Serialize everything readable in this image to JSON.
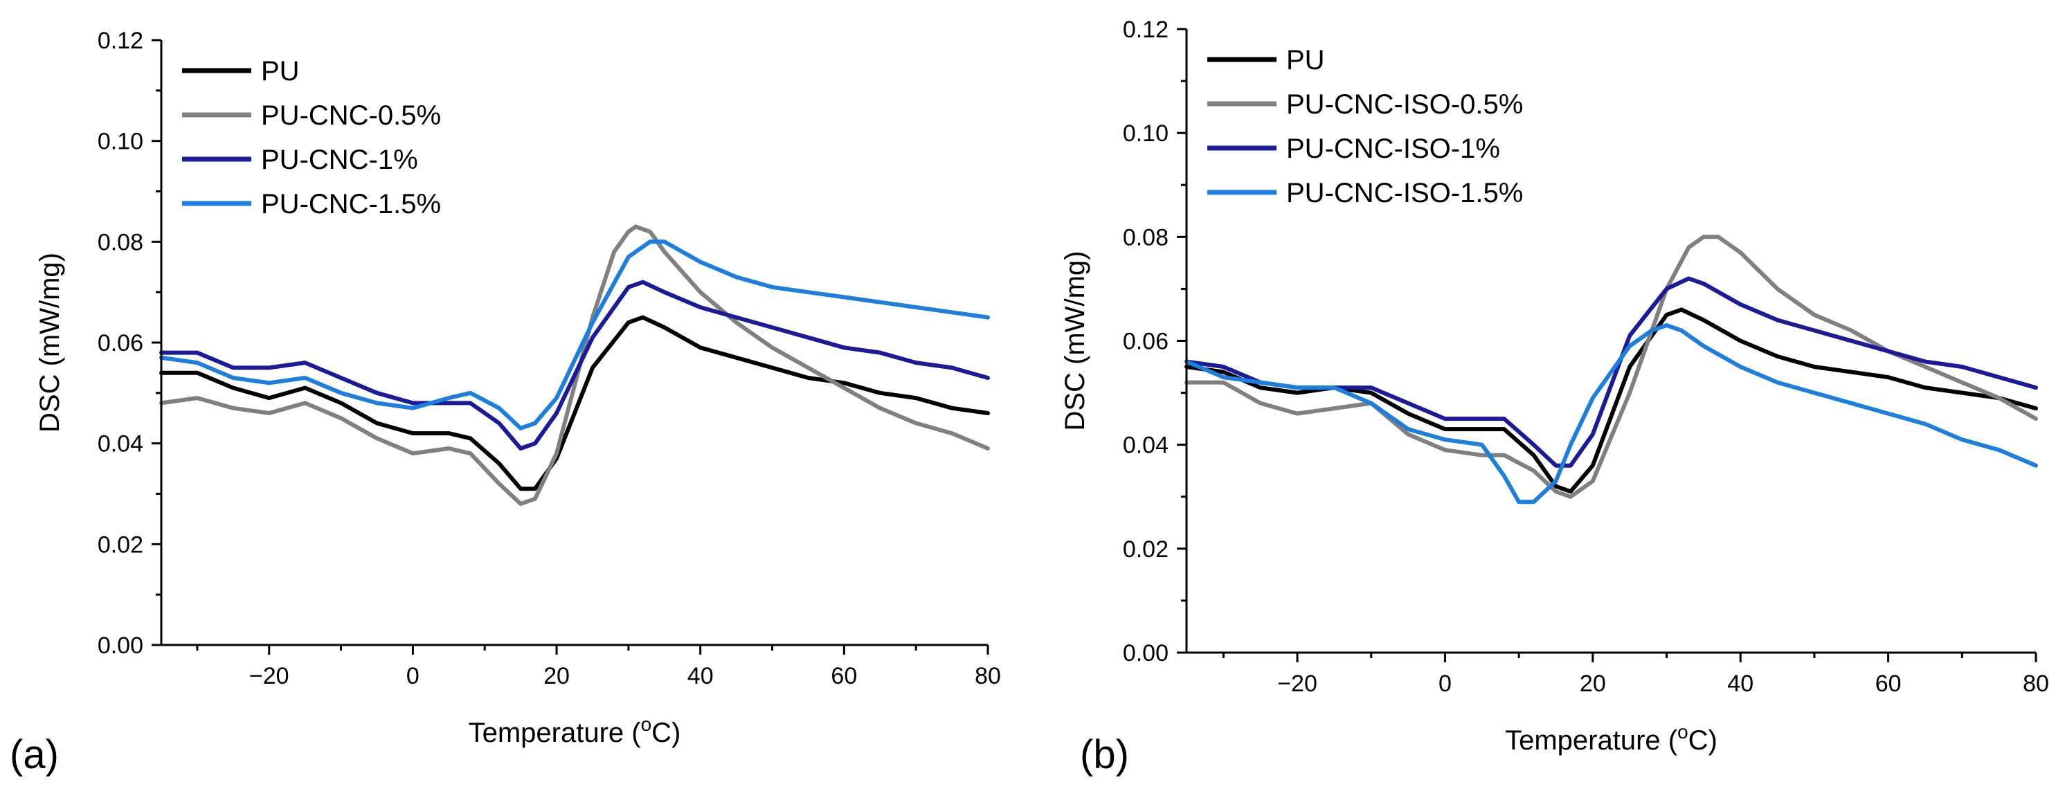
{
  "chart_data": [
    {
      "type": "line",
      "panel_label": "(a)",
      "xlabel": "Temperature",
      "xlabel_unit_sup": "o",
      "xlabel_unit": "C",
      "ylabel": "DSC (mW/mg)",
      "xlim": [
        -35,
        80
      ],
      "ylim": [
        0.0,
        0.12
      ],
      "x_ticks": [
        -20,
        0,
        20,
        40,
        60,
        80
      ],
      "x_tick_labels": [
        "−20",
        "0",
        "20",
        "40",
        "60",
        "80"
      ],
      "y_ticks": [
        0.0,
        0.02,
        0.04,
        0.06,
        0.08,
        0.1,
        0.12
      ],
      "y_tick_labels": [
        "0.00",
        "0.02",
        "0.04",
        "0.06",
        "0.08",
        "0.10",
        "0.12"
      ],
      "grid": false,
      "legend_position": "top-left",
      "series": [
        {
          "name": "PU",
          "color": "#000000",
          "x": [
            -35,
            -30,
            -25,
            -20,
            -15,
            -10,
            -5,
            0,
            5,
            8,
            12,
            15,
            17,
            20,
            25,
            30,
            32,
            35,
            40,
            45,
            50,
            55,
            60,
            65,
            70,
            75,
            80
          ],
          "y": [
            0.054,
            0.054,
            0.051,
            0.049,
            0.051,
            0.048,
            0.044,
            0.042,
            0.042,
            0.041,
            0.036,
            0.031,
            0.031,
            0.037,
            0.055,
            0.064,
            0.065,
            0.063,
            0.059,
            0.057,
            0.055,
            0.053,
            0.052,
            0.05,
            0.049,
            0.047,
            0.046
          ]
        },
        {
          "name": "PU-CNC-0.5%",
          "color": "#808080",
          "x": [
            -35,
            -30,
            -25,
            -20,
            -15,
            -10,
            -5,
            0,
            5,
            8,
            12,
            15,
            17,
            20,
            25,
            28,
            30,
            31,
            33,
            35,
            40,
            45,
            50,
            55,
            60,
            65,
            70,
            75,
            80
          ],
          "y": [
            0.048,
            0.049,
            0.047,
            0.046,
            0.048,
            0.045,
            0.041,
            0.038,
            0.039,
            0.038,
            0.032,
            0.028,
            0.029,
            0.038,
            0.065,
            0.078,
            0.082,
            0.083,
            0.082,
            0.078,
            0.07,
            0.064,
            0.059,
            0.055,
            0.051,
            0.047,
            0.044,
            0.042,
            0.039
          ]
        },
        {
          "name": "PU-CNC-1%",
          "color": "#1a1a9a",
          "x": [
            -35,
            -30,
            -25,
            -20,
            -15,
            -10,
            -5,
            0,
            5,
            8,
            12,
            15,
            17,
            20,
            25,
            30,
            32,
            35,
            40,
            45,
            50,
            55,
            60,
            65,
            70,
            75,
            80
          ],
          "y": [
            0.058,
            0.058,
            0.055,
            0.055,
            0.056,
            0.053,
            0.05,
            0.048,
            0.048,
            0.048,
            0.044,
            0.039,
            0.04,
            0.046,
            0.061,
            0.071,
            0.072,
            0.07,
            0.067,
            0.065,
            0.063,
            0.061,
            0.059,
            0.058,
            0.056,
            0.055,
            0.053
          ]
        },
        {
          "name": "PU-CNC-1.5%",
          "color": "#1c7fe0",
          "x": [
            -35,
            -30,
            -25,
            -20,
            -15,
            -10,
            -5,
            0,
            5,
            8,
            12,
            15,
            17,
            20,
            25,
            30,
            33,
            35,
            40,
            45,
            50,
            55,
            60,
            65,
            70,
            75,
            80
          ],
          "y": [
            0.057,
            0.056,
            0.053,
            0.052,
            0.053,
            0.05,
            0.048,
            0.047,
            0.049,
            0.05,
            0.047,
            0.043,
            0.044,
            0.049,
            0.064,
            0.077,
            0.08,
            0.08,
            0.076,
            0.073,
            0.071,
            0.07,
            0.069,
            0.068,
            0.067,
            0.066,
            0.065
          ]
        }
      ]
    },
    {
      "type": "line",
      "panel_label": "(b)",
      "xlabel": "Temperature",
      "xlabel_unit_sup": "o",
      "xlabel_unit": "C",
      "ylabel": "DSC (mW/mg)",
      "xlim": [
        -35,
        80
      ],
      "ylim": [
        0.0,
        0.12
      ],
      "x_ticks": [
        -20,
        0,
        20,
        40,
        60,
        80
      ],
      "x_tick_labels": [
        "−20",
        "0",
        "20",
        "40",
        "60",
        "80"
      ],
      "y_ticks": [
        0.0,
        0.02,
        0.04,
        0.06,
        0.08,
        0.1,
        0.12
      ],
      "y_tick_labels": [
        "0.00",
        "0.02",
        "0.04",
        "0.06",
        "0.08",
        "0.10",
        "0.12"
      ],
      "grid": false,
      "legend_position": "top-left",
      "series": [
        {
          "name": "PU",
          "color": "#000000",
          "x": [
            -35,
            -30,
            -25,
            -20,
            -15,
            -10,
            -5,
            0,
            5,
            8,
            12,
            15,
            17,
            20,
            25,
            30,
            32,
            35,
            40,
            45,
            50,
            55,
            60,
            65,
            70,
            75,
            80
          ],
          "y": [
            0.055,
            0.054,
            0.051,
            0.05,
            0.051,
            0.05,
            0.046,
            0.043,
            0.043,
            0.043,
            0.038,
            0.032,
            0.031,
            0.036,
            0.055,
            0.065,
            0.066,
            0.064,
            0.06,
            0.057,
            0.055,
            0.054,
            0.053,
            0.051,
            0.05,
            0.049,
            0.047
          ]
        },
        {
          "name": "PU-CNC-ISO-0.5%",
          "color": "#808080",
          "x": [
            -35,
            -30,
            -25,
            -20,
            -15,
            -10,
            -5,
            0,
            5,
            8,
            12,
            15,
            17,
            20,
            25,
            30,
            33,
            35,
            37,
            40,
            45,
            50,
            55,
            60,
            65,
            70,
            75,
            80
          ],
          "y": [
            0.052,
            0.052,
            0.048,
            0.046,
            0.047,
            0.048,
            0.042,
            0.039,
            0.038,
            0.038,
            0.035,
            0.031,
            0.03,
            0.033,
            0.05,
            0.07,
            0.078,
            0.08,
            0.08,
            0.077,
            0.07,
            0.065,
            0.062,
            0.058,
            0.055,
            0.052,
            0.049,
            0.045
          ]
        },
        {
          "name": "PU-CNC-ISO-1%",
          "color": "#1a1a9a",
          "x": [
            -35,
            -30,
            -25,
            -20,
            -15,
            -10,
            -5,
            0,
            5,
            8,
            12,
            15,
            17,
            20,
            25,
            30,
            33,
            35,
            40,
            45,
            50,
            55,
            60,
            65,
            70,
            75,
            80
          ],
          "y": [
            0.056,
            0.055,
            0.052,
            0.051,
            0.051,
            0.051,
            0.048,
            0.045,
            0.045,
            0.045,
            0.04,
            0.036,
            0.036,
            0.042,
            0.061,
            0.07,
            0.072,
            0.071,
            0.067,
            0.064,
            0.062,
            0.06,
            0.058,
            0.056,
            0.055,
            0.053,
            0.051
          ]
        },
        {
          "name": "PU-CNC-ISO-1.5%",
          "color": "#1c7fe0",
          "x": [
            -35,
            -30,
            -25,
            -20,
            -15,
            -10,
            -5,
            0,
            5,
            8,
            10,
            12,
            15,
            17,
            20,
            25,
            28,
            30,
            32,
            35,
            40,
            45,
            50,
            55,
            60,
            65,
            70,
            75,
            80
          ],
          "y": [
            0.056,
            0.053,
            0.052,
            0.051,
            0.051,
            0.048,
            0.043,
            0.041,
            0.04,
            0.034,
            0.029,
            0.029,
            0.033,
            0.04,
            0.049,
            0.059,
            0.062,
            0.063,
            0.062,
            0.059,
            0.055,
            0.052,
            0.05,
            0.048,
            0.046,
            0.044,
            0.041,
            0.039,
            0.036
          ]
        }
      ]
    }
  ]
}
